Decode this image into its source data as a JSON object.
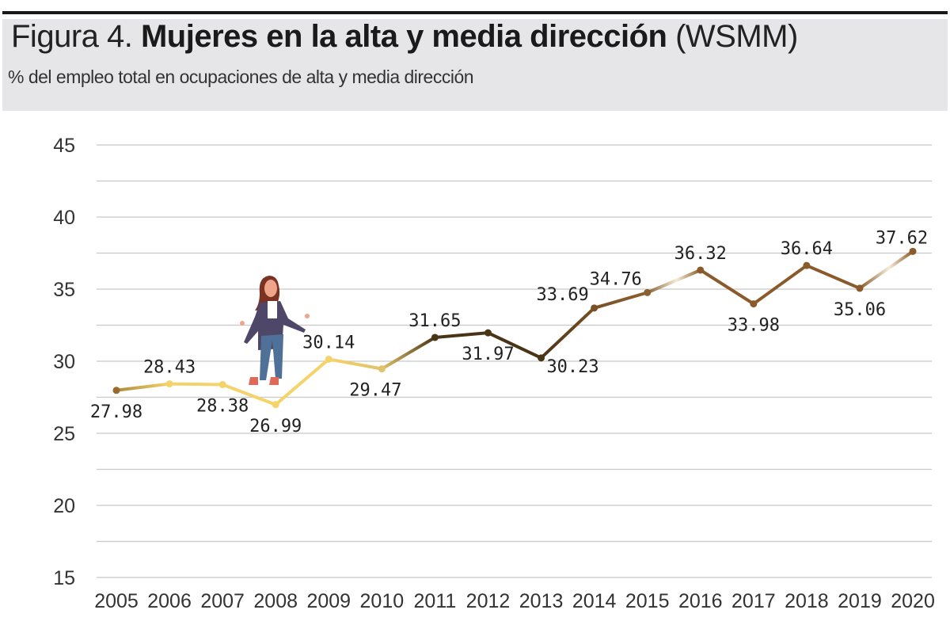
{
  "header": {
    "title_prefix": "Figura 4.",
    "title_main": "Mujeres en la alta y media dirección",
    "title_suffix": "(WSMM)",
    "subtitle": "% del empleo total en ocupaciones de alta y media dirección"
  },
  "chart_data": {
    "type": "line",
    "title": "Figura 4. Mujeres en la alta y media dirección (WSMM)",
    "subtitle": "% del empleo total en ocupaciones de alta y media dirección",
    "xlabel": "",
    "ylabel": "",
    "categories": [
      "2005",
      "2006",
      "2007",
      "2008",
      "2009",
      "2010",
      "2011",
      "2012",
      "2013",
      "2014",
      "2015",
      "2016",
      "2017",
      "2018",
      "2019",
      "2020"
    ],
    "values": [
      27.98,
      28.43,
      28.38,
      26.99,
      30.14,
      29.47,
      31.65,
      31.97,
      30.23,
      33.69,
      34.76,
      36.32,
      33.98,
      36.64,
      35.06,
      37.62
    ],
    "data_labels": [
      "27.98",
      "28.43",
      "28.38",
      "26.99",
      "30.14",
      "29.47",
      "31.65",
      "31.97",
      "30.23",
      "33.69",
      "34.76",
      "36.32",
      "33.98",
      "36.64",
      "35.06",
      "37.62"
    ],
    "yticks": [
      "15",
      "20",
      "25",
      "30",
      "35",
      "40",
      "45"
    ],
    "ylim": [
      15,
      45
    ],
    "grid": true,
    "point_colors": [
      "#9a6a2c",
      "#f3d36a",
      "#f3d36a",
      "#f3d36a",
      "#f3d36a",
      "#e0c36a",
      "#4a3418",
      "#4a3418",
      "#4a3418",
      "#7a5024",
      "#8b6030",
      "#8b5a2b",
      "#8b5a2b",
      "#8b5a2b",
      "#8b5a2b",
      "#8b5a2b"
    ]
  }
}
